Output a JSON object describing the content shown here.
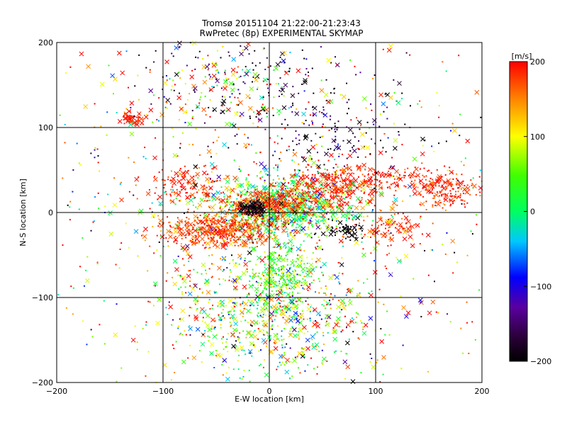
{
  "chart_data": {
    "type": "scatter",
    "title": "Tromsø 20151104 21:22:00-21:23:43",
    "subtitle": "RwPretec (8p) EXPERIMENTAL SKYMAP",
    "xlabel": "E-W location [km]",
    "ylabel": "N-S location [km]",
    "xlim": [
      -200,
      200
    ],
    "ylim": [
      -200,
      200
    ],
    "xticks": [
      -200,
      -100,
      0,
      100,
      200
    ],
    "yticks": [
      -200,
      -100,
      0,
      100,
      200
    ],
    "xtick_labels": [
      "−200",
      "−100",
      "0",
      "100",
      "200"
    ],
    "ytick_labels": [
      "−200",
      "−100",
      "0",
      "100",
      "200"
    ],
    "grid": true,
    "markers": [
      "dot",
      "x"
    ],
    "colorbar": {
      "label": "[m/s]",
      "range": [
        -200,
        200
      ],
      "ticks": [
        200,
        100,
        0,
        -100,
        -200
      ],
      "tick_labels": [
        "200",
        "100",
        "0",
        "−100",
        "−200"
      ],
      "colormap": "rainbow (black-purple-blue-cyan-green-yellow-red)"
    },
    "clusters": [
      {
        "x": 10,
        "y": 5,
        "sx": 32,
        "sy": 18,
        "n": 900,
        "v": 20,
        "dv": 60
      },
      {
        "x": -45,
        "y": -20,
        "sx": 28,
        "sy": 10,
        "n": 520,
        "v": 175,
        "dv": 25
      },
      {
        "x": 5,
        "y": 8,
        "sx": 20,
        "sy": 8,
        "n": 230,
        "v": 170,
        "dv": 30
      },
      {
        "x": -10,
        "y": 12,
        "sx": 18,
        "sy": 8,
        "n": 120,
        "v": 185,
        "dv": 20
      },
      {
        "x": -15,
        "y": 5,
        "sx": 6,
        "sy": 4,
        "n": 110,
        "v": -190,
        "dv": 10
      },
      {
        "x": 60,
        "y": 30,
        "sx": 22,
        "sy": 14,
        "n": 330,
        "v": 185,
        "dv": 20
      },
      {
        "x": 165,
        "y": 28,
        "sx": 14,
        "sy": 10,
        "n": 180,
        "v": 185,
        "dv": 20
      },
      {
        "x": 115,
        "y": 40,
        "sx": 18,
        "sy": 8,
        "n": 100,
        "v": 190,
        "dv": 15
      },
      {
        "x": -80,
        "y": 35,
        "sx": 18,
        "sy": 12,
        "n": 120,
        "v": 185,
        "dv": 20
      },
      {
        "x": -128,
        "y": 110,
        "sx": 6,
        "sy": 4,
        "n": 60,
        "v": 190,
        "dv": 15
      },
      {
        "x": 70,
        "y": -20,
        "sx": 10,
        "sy": 5,
        "n": 60,
        "v": -195,
        "dv": 10
      },
      {
        "x": 115,
        "y": -20,
        "sx": 14,
        "sy": 8,
        "n": 90,
        "v": 185,
        "dv": 25
      },
      {
        "x": 0,
        "y": -120,
        "sx": 45,
        "sy": 35,
        "n": 700,
        "v": 55,
        "dv": 90
      },
      {
        "x": 10,
        "y": -70,
        "sx": 15,
        "sy": 18,
        "n": 220,
        "v": 40,
        "dv": 35
      },
      {
        "x": -10,
        "y": 150,
        "sx": 60,
        "sy": 30,
        "n": 160,
        "v": -175,
        "dv": 35
      },
      {
        "x": 60,
        "y": 90,
        "sx": 35,
        "sy": 20,
        "n": 110,
        "v": -180,
        "dv": 40
      },
      {
        "x": -50,
        "y": 150,
        "sx": 40,
        "sy": 25,
        "n": 120,
        "v": 100,
        "dv": 110
      },
      {
        "x": 0,
        "y": 0,
        "sx": 120,
        "sy": 110,
        "n": 600,
        "v": 150,
        "dv": 80
      },
      {
        "x": 0,
        "y": 0,
        "sx": 130,
        "sy": 120,
        "n": 350,
        "v": 0,
        "dv": 150
      }
    ]
  }
}
